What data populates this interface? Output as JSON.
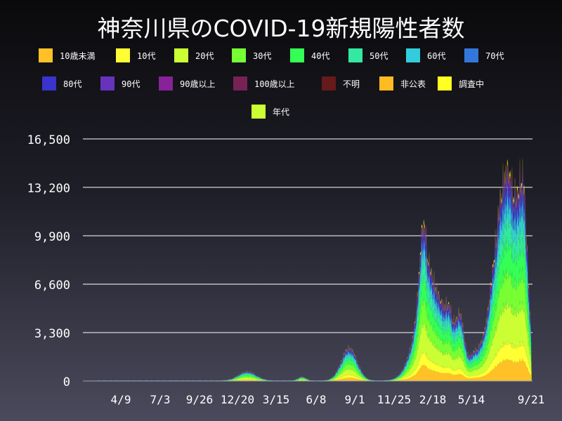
{
  "chart_data": {
    "type": "area",
    "title": "神奈川県のCOVID-19新規陽性者数",
    "xlabel": "",
    "ylabel": "",
    "ylim": [
      0,
      16500
    ],
    "y_ticks": [
      0,
      3300,
      6600,
      9900,
      13200,
      16500
    ],
    "y_tick_labels": [
      "0",
      "3,300",
      "6,600",
      "9,900",
      "13,200",
      "16,500"
    ],
    "x_tick_labels": [
      "4/9",
      "7/3",
      "9/26",
      "12/20",
      "3/15",
      "6/8",
      "9/1",
      "11/25",
      "2/18",
      "5/14",
      "9/21"
    ],
    "grid": true,
    "legend_position": "top",
    "stacked": true,
    "series": [
      {
        "name": "10歳未満",
        "color": "#ffc125"
      },
      {
        "name": "10代",
        "color": "#ffff33"
      },
      {
        "name": "20代",
        "color": "#ccff33"
      },
      {
        "name": "30代",
        "color": "#77ff33"
      },
      {
        "name": "40代",
        "color": "#33ff55"
      },
      {
        "name": "50代",
        "color": "#33e8a0"
      },
      {
        "name": "60代",
        "color": "#33ccdd"
      },
      {
        "name": "70代",
        "color": "#3377dd"
      },
      {
        "name": "80代",
        "color": "#3a33cc"
      },
      {
        "name": "90代",
        "color": "#6633bb"
      },
      {
        "name": "90歳以上",
        "color": "#882299"
      },
      {
        "name": "100歳以上",
        "color": "#772255"
      },
      {
        "name": "不明",
        "color": "#661a1a"
      },
      {
        "name": "非公表",
        "color": "#ffbb22"
      },
      {
        "name": "調査中",
        "color": "#ffff22"
      },
      {
        "name": "年代",
        "color": "#ccff33"
      }
    ],
    "peaks": [
      {
        "label": "12/20",
        "total": 700
      },
      {
        "label": "9/1",
        "total": 2500
      },
      {
        "label": "2/18",
        "total": 8000
      },
      {
        "label": "5/14",
        "total": 1600
      },
      {
        "label": "9/21",
        "total": 16000
      }
    ]
  }
}
